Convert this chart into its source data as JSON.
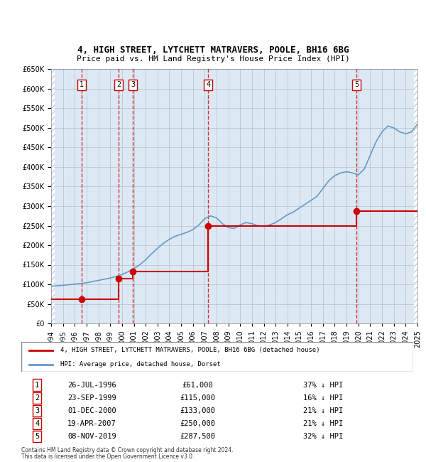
{
  "title": "4, HIGH STREET, LYTCHETT MATRAVERS, POOLE, BH16 6BG",
  "subtitle": "Price paid vs. HM Land Registry's House Price Index (HPI)",
  "footnote1": "Contains HM Land Registry data © Crown copyright and database right 2024.",
  "footnote2": "This data is licensed under the Open Government Licence v3.0.",
  "legend_label_red": "4, HIGH STREET, LYTCHETT MATRAVERS, POOLE, BH16 6BG (detached house)",
  "legend_label_blue": "HPI: Average price, detached house, Dorset",
  "sales": [
    {
      "num": 1,
      "date": "26-JUL-1996",
      "year": 1996.57,
      "price": 61000,
      "pct": "37% ↓ HPI"
    },
    {
      "num": 2,
      "date": "23-SEP-1999",
      "year": 1999.72,
      "price": 115000,
      "pct": "16% ↓ HPI"
    },
    {
      "num": 3,
      "date": "01-DEC-2000",
      "year": 2000.92,
      "price": 133000,
      "pct": "21% ↓ HPI"
    },
    {
      "num": 4,
      "date": "19-APR-2007",
      "year": 2007.29,
      "price": 250000,
      "pct": "21% ↓ HPI"
    },
    {
      "num": 5,
      "date": "08-NOV-2019",
      "year": 2019.85,
      "price": 287500,
      "pct": "32% ↓ HPI"
    }
  ],
  "hpi_years": [
    1994,
    1994.5,
    1995,
    1995.5,
    1996,
    1996.5,
    1997,
    1997.5,
    1998,
    1998.5,
    1999,
    1999.5,
    2000,
    2000.5,
    2001,
    2001.5,
    2002,
    2002.5,
    2003,
    2003.5,
    2004,
    2004.5,
    2005,
    2005.5,
    2006,
    2006.5,
    2007,
    2007.5,
    2008,
    2008.5,
    2009,
    2009.5,
    2010,
    2010.5,
    2011,
    2011.5,
    2012,
    2012.5,
    2013,
    2013.5,
    2014,
    2014.5,
    2015,
    2015.5,
    2016,
    2016.5,
    2017,
    2017.5,
    2018,
    2018.5,
    2019,
    2019.5,
    2020,
    2020.5,
    2021,
    2021.5,
    2022,
    2022.5,
    2023,
    2023.5,
    2024,
    2024.5,
    2025
  ],
  "hpi_values": [
    95000,
    96000,
    97500,
    99000,
    100500,
    102000,
    104000,
    107000,
    110000,
    113000,
    116000,
    120000,
    125000,
    132000,
    140000,
    150000,
    163000,
    178000,
    192000,
    205000,
    215000,
    223000,
    228000,
    233000,
    240000,
    252000,
    268000,
    275000,
    270000,
    255000,
    245000,
    243000,
    252000,
    258000,
    255000,
    250000,
    248000,
    252000,
    258000,
    268000,
    278000,
    285000,
    295000,
    305000,
    315000,
    325000,
    345000,
    365000,
    378000,
    385000,
    388000,
    385000,
    380000,
    395000,
    430000,
    465000,
    490000,
    505000,
    500000,
    490000,
    485000,
    490000,
    510000
  ],
  "price_line_years": [
    1994,
    1996.57,
    1996.57,
    1999.72,
    1999.72,
    2000.92,
    2000.92,
    2007.29,
    2007.29,
    2019.85,
    2019.85,
    2025
  ],
  "price_line_values": [
    61000,
    61000,
    61000,
    61000,
    115000,
    115000,
    133000,
    133000,
    250000,
    250000,
    287500,
    287500
  ],
  "ylim": [
    0,
    650000
  ],
  "xlim": [
    1994,
    2025
  ],
  "yticks": [
    0,
    50000,
    100000,
    150000,
    200000,
    250000,
    300000,
    350000,
    400000,
    450000,
    500000,
    550000,
    600000,
    650000
  ],
  "xticks": [
    1994,
    1995,
    1996,
    1997,
    1998,
    1999,
    2000,
    2001,
    2002,
    2003,
    2004,
    2005,
    2006,
    2007,
    2008,
    2009,
    2010,
    2011,
    2012,
    2013,
    2014,
    2015,
    2016,
    2017,
    2018,
    2019,
    2020,
    2021,
    2022,
    2023,
    2024,
    2025
  ],
  "bg_color": "#dce9f5",
  "hatch_color": "#c0d0e0",
  "red_color": "#cc0000",
  "blue_color": "#6699cc",
  "dashed_red": "#cc0000",
  "grid_color": "#aaaaaa",
  "box_color": "#cc0000"
}
